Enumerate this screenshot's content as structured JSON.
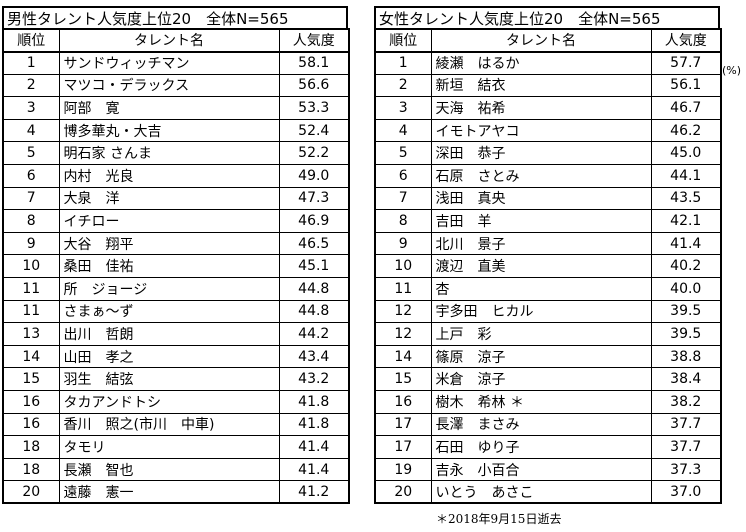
{
  "male": {
    "title": "男性タレント人気度上位20　全体N=565",
    "headers": {
      "rank": "順位",
      "name": "タレント名",
      "score": "人気度"
    },
    "rows": [
      {
        "rank": "1",
        "name": "サンドウィッチマン",
        "score": "58.1"
      },
      {
        "rank": "2",
        "name": "マツコ・デラックス",
        "score": "56.6"
      },
      {
        "rank": "3",
        "name": "阿部　寛",
        "score": "53.3"
      },
      {
        "rank": "4",
        "name": "博多華丸・大吉",
        "score": "52.4"
      },
      {
        "rank": "5",
        "name": "明石家 さんま",
        "score": "52.2"
      },
      {
        "rank": "6",
        "name": "内村　光良",
        "score": "49.0"
      },
      {
        "rank": "7",
        "name": "大泉　洋",
        "score": "47.3"
      },
      {
        "rank": "8",
        "name": "イチロー",
        "score": "46.9"
      },
      {
        "rank": "9",
        "name": "大谷　翔平",
        "score": "46.5"
      },
      {
        "rank": "10",
        "name": "桑田　佳祐",
        "score": "45.1"
      },
      {
        "rank": "11",
        "name": "所　ジョージ",
        "score": "44.8"
      },
      {
        "rank": "11",
        "name": "さまぁ～ず",
        "score": "44.8"
      },
      {
        "rank": "13",
        "name": "出川　哲朗",
        "score": "44.2"
      },
      {
        "rank": "14",
        "name": "山田　孝之",
        "score": "43.4"
      },
      {
        "rank": "15",
        "name": "羽生　結弦",
        "score": "43.2"
      },
      {
        "rank": "16",
        "name": "タカアンドトシ",
        "score": "41.8"
      },
      {
        "rank": "16",
        "name": "香川　照之(市川　中車)",
        "score": "41.8"
      },
      {
        "rank": "18",
        "name": "タモリ",
        "score": "41.4"
      },
      {
        "rank": "18",
        "name": "長瀬　智也",
        "score": "41.4"
      },
      {
        "rank": "20",
        "name": "遠藤　憲一",
        "score": "41.2"
      }
    ]
  },
  "female": {
    "title": "女性タレント人気度上位20　全体N=565",
    "headers": {
      "rank": "順位",
      "name": "タレント名",
      "score": "人気度"
    },
    "rows": [
      {
        "rank": "1",
        "name": "綾瀬　はるか",
        "score": "57.7"
      },
      {
        "rank": "2",
        "name": "新垣　結衣",
        "score": "56.1"
      },
      {
        "rank": "3",
        "name": "天海　祐希",
        "score": "46.7"
      },
      {
        "rank": "4",
        "name": "イモトアヤコ",
        "score": "46.2"
      },
      {
        "rank": "5",
        "name": "深田　恭子",
        "score": "45.0"
      },
      {
        "rank": "6",
        "name": "石原　さとみ",
        "score": "44.1"
      },
      {
        "rank": "7",
        "name": "浅田　真央",
        "score": "43.5"
      },
      {
        "rank": "8",
        "name": "吉田　羊",
        "score": "42.1"
      },
      {
        "rank": "9",
        "name": "北川　景子",
        "score": "41.4"
      },
      {
        "rank": "10",
        "name": "渡辺　直美",
        "score": "40.2"
      },
      {
        "rank": "11",
        "name": "杏",
        "score": "40.0"
      },
      {
        "rank": "12",
        "name": "宇多田　ヒカル",
        "score": "39.5"
      },
      {
        "rank": "12",
        "name": "上戸　彩",
        "score": "39.5"
      },
      {
        "rank": "14",
        "name": "篠原　涼子",
        "score": "38.8"
      },
      {
        "rank": "15",
        "name": "米倉　涼子",
        "score": "38.4"
      },
      {
        "rank": "16",
        "name": "樹木　希林 ＊",
        "score": "38.2"
      },
      {
        "rank": "17",
        "name": "長澤　まさみ",
        "score": "37.7"
      },
      {
        "rank": "17",
        "name": "石田　ゆり子",
        "score": "37.7"
      },
      {
        "rank": "19",
        "name": "吉永　小百合",
        "score": "37.3"
      },
      {
        "rank": "20",
        "name": "いとう　あさこ",
        "score": "37.0"
      }
    ]
  },
  "unit_label": "(%)",
  "footnote": "＊2018年9月15日逝去"
}
